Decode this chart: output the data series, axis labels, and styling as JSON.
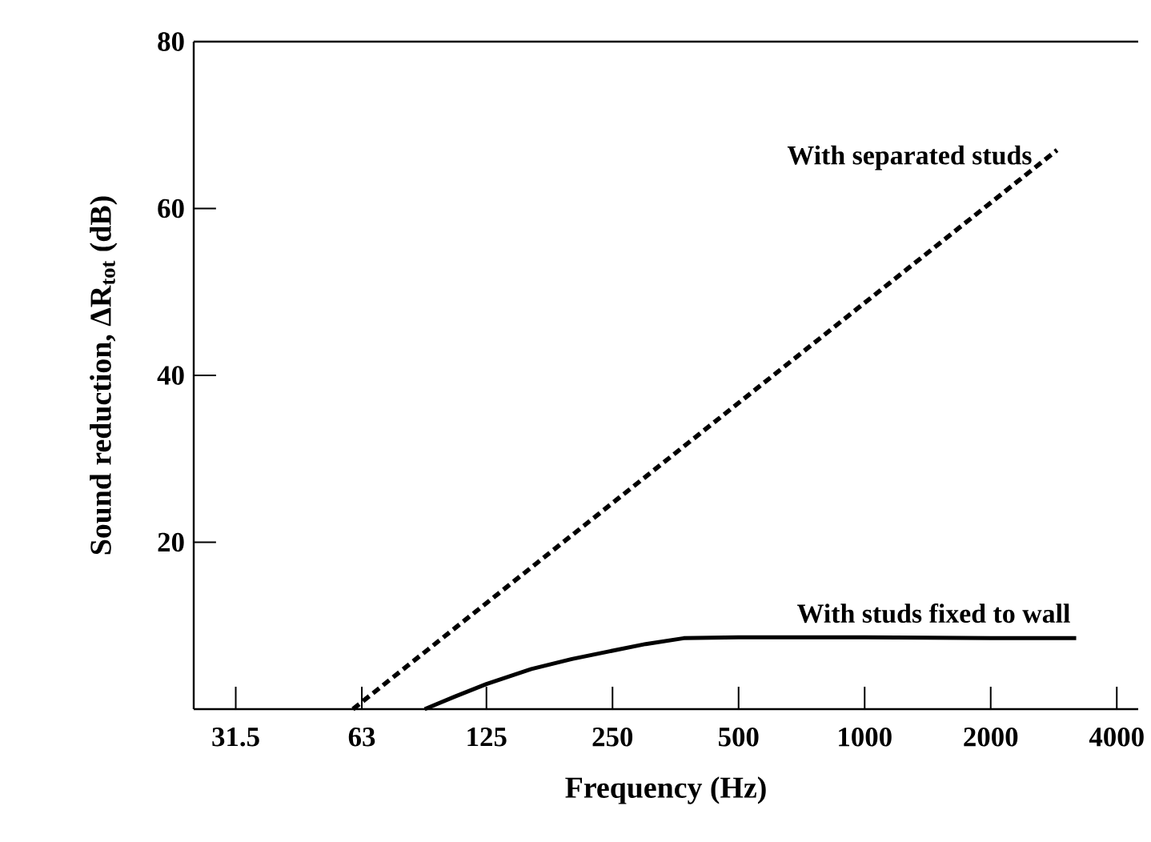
{
  "chart_data": {
    "type": "line",
    "xlabel": "Frequency (Hz)",
    "ylabel": "Sound reduction,  ΔR$_{tot}$ (dB)",
    "log": "x",
    "xlim": [
      25,
      4500
    ],
    "ylim": [
      0,
      80
    ],
    "xticks": [
      31.5,
      63,
      125,
      250,
      500,
      1000,
      2000,
      4000
    ],
    "yticks": [
      20,
      40,
      60,
      80
    ],
    "series": [
      {
        "name": "With separated studs",
        "color": "#000000",
        "line_style": "dashed",
        "x": [
          60,
          2880
        ],
        "values": [
          0,
          67
        ]
      },
      {
        "name": "With studs fixed to wall",
        "color": "#000000",
        "line_style": "solid",
        "x": [
          89,
          105,
          125,
          160,
          200,
          250,
          300,
          370,
          500,
          1000,
          2000,
          3200
        ],
        "values": [
          0,
          1.5,
          3,
          4.8,
          6,
          7,
          7.8,
          8.5,
          8.6,
          8.6,
          8.5,
          8.5
        ]
      }
    ]
  }
}
